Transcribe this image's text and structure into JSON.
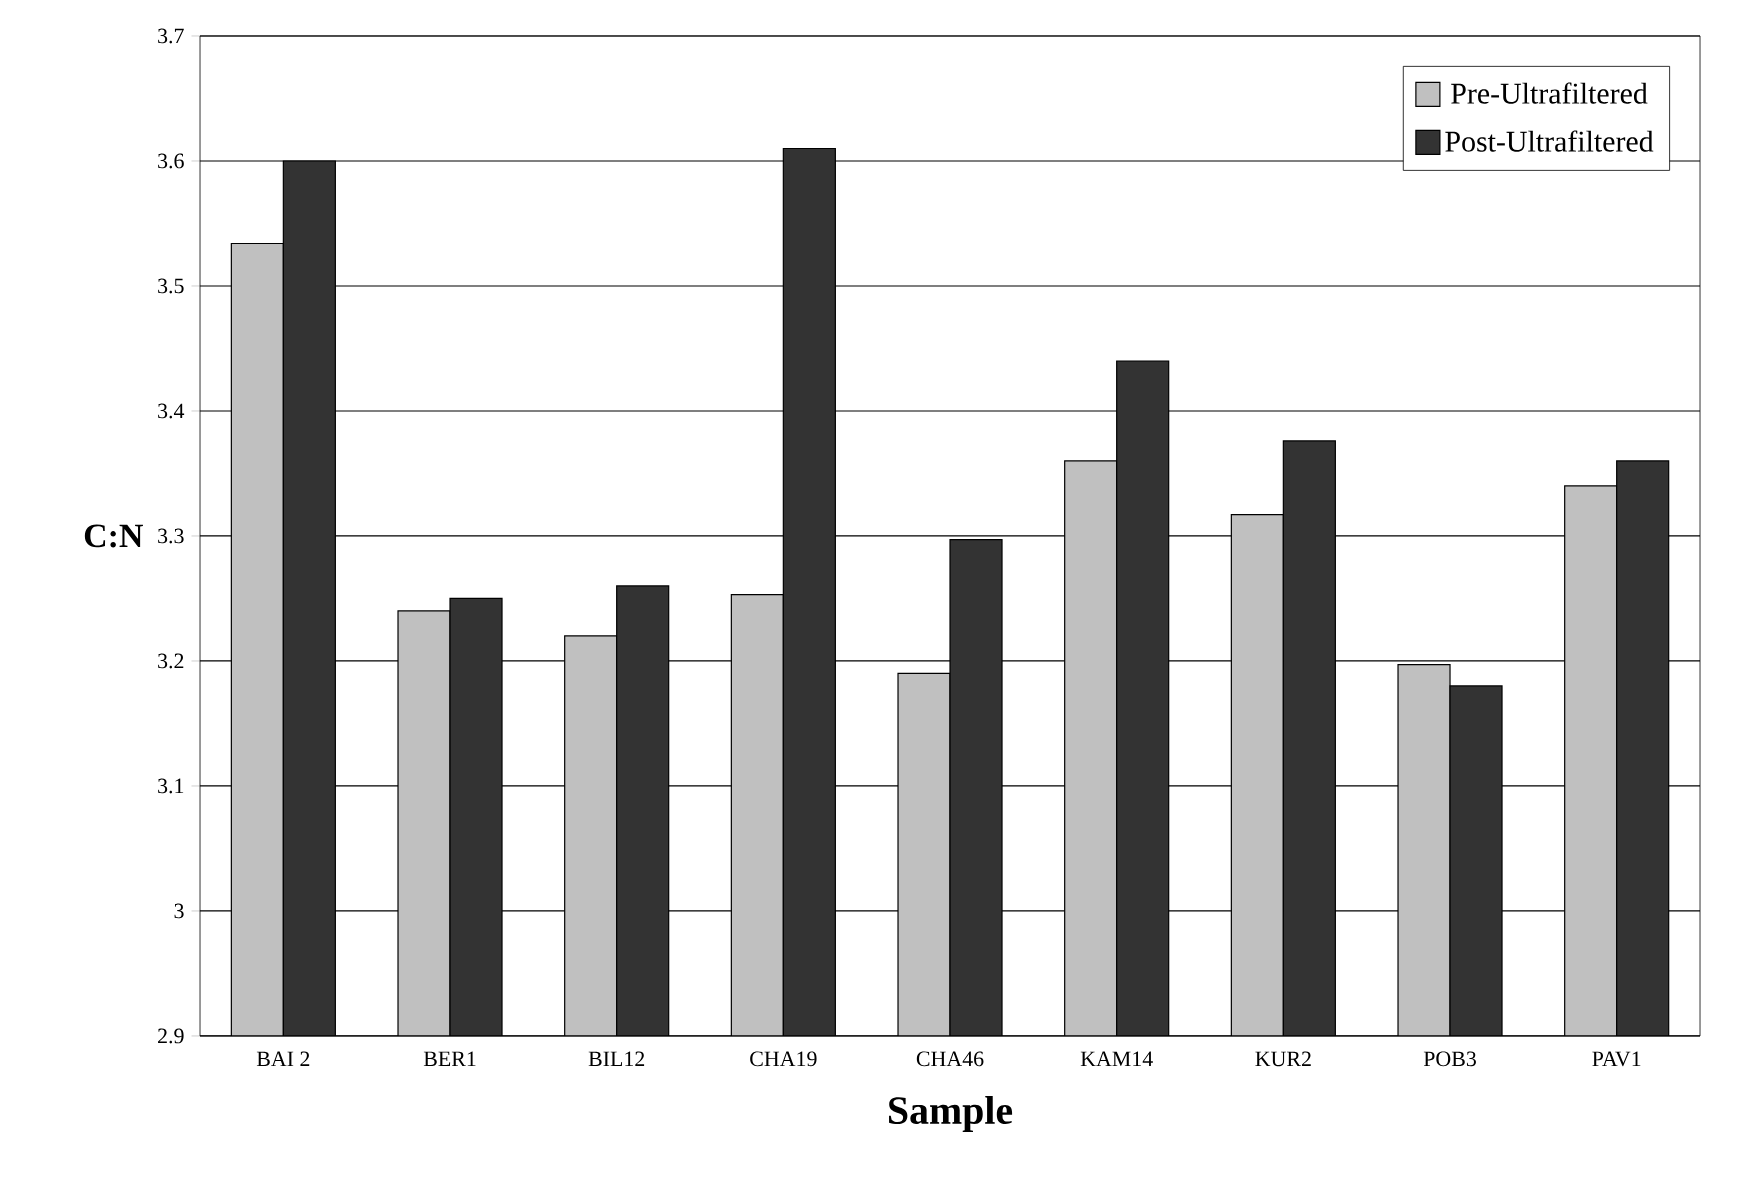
{
  "chart_data": {
    "type": "bar",
    "xlabel": "Sample",
    "ylabel": "C:N",
    "categories": [
      "BAI 2",
      "BER1",
      "BIL12",
      "CHA19",
      "CHA46",
      "KAM14",
      "KUR2",
      "POB3",
      "PAV1"
    ],
    "series": [
      {
        "name": "Pre-Ultrafiltered",
        "color": "#c0c0c0",
        "values": [
          3.534,
          3.24,
          3.22,
          3.253,
          3.19,
          3.36,
          3.317,
          3.197,
          3.34
        ]
      },
      {
        "name": "Post-Ultrafiltered",
        "color": "#333333",
        "values": [
          3.6,
          3.25,
          3.26,
          3.61,
          3.297,
          3.44,
          3.376,
          3.18,
          3.36
        ]
      }
    ],
    "ylim": [
      2.9,
      3.7
    ],
    "yticks": [
      2.9,
      3,
      3.1,
      3.2,
      3.3,
      3.4,
      3.5,
      3.6,
      3.7
    ],
    "grid": "y",
    "legend": "top right"
  }
}
